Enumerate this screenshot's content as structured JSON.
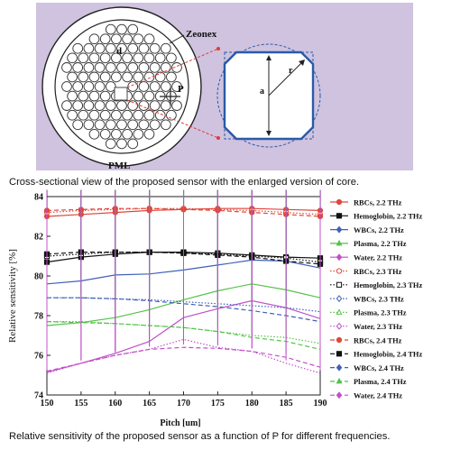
{
  "figure_top": {
    "labels": {
      "zeonex": "Zeonex",
      "d": "d",
      "p": "P",
      "pml": "PML",
      "a": "a",
      "r": "r"
    },
    "caption": "Cross-sectional view of the proposed sensor with the enlarged version of core."
  },
  "figure_bottom_caption": "Relative sensitivity of the proposed sensor as a function of P for different frequencies.",
  "chart_data": {
    "type": "line",
    "xlabel": "Pitch [um]",
    "ylabel": "Relative sensitivity [%]",
    "x": [
      150,
      155,
      160,
      165,
      170,
      175,
      180,
      185,
      190
    ],
    "x_ticks": [
      "150",
      "155",
      "160",
      "165",
      "170",
      "175",
      "180",
      "185",
      "190"
    ],
    "y_ticks": [
      "74",
      "76",
      "78",
      "80",
      "82",
      "84"
    ],
    "xlim": [
      150,
      190
    ],
    "ylim": [
      74,
      84
    ],
    "grid": false,
    "legend_position": "right",
    "series": [
      {
        "name": "RBCs, 2.2 THz",
        "color": "#e0463a",
        "dash": "solid",
        "marker": "circle",
        "values": [
          83.0,
          83.1,
          83.2,
          83.3,
          83.35,
          83.4,
          83.4,
          83.35,
          83.3
        ]
      },
      {
        "name": "Hemoglobin, 2.2 THz",
        "color": "#111111",
        "dash": "solid",
        "marker": "square",
        "values": [
          80.7,
          80.95,
          81.1,
          81.2,
          81.2,
          81.15,
          81.05,
          80.95,
          80.9
        ]
      },
      {
        "name": "WBCs, 2.2 THz",
        "color": "#4060b8",
        "dash": "solid",
        "marker": "diamond",
        "values": [
          79.6,
          79.75,
          80.05,
          80.1,
          80.3,
          80.55,
          80.8,
          80.75,
          80.4
        ]
      },
      {
        "name": "Plasma, 2.2 THz",
        "color": "#55c24a",
        "dash": "solid",
        "marker": "triangle",
        "values": [
          77.5,
          77.65,
          77.9,
          78.3,
          78.8,
          79.25,
          79.6,
          79.3,
          78.9
        ]
      },
      {
        "name": "Water, 2.2 THz",
        "color": "#c050c8",
        "dash": "solid",
        "marker": "diamond",
        "values": [
          75.15,
          75.6,
          76.1,
          76.7,
          77.9,
          78.35,
          78.75,
          78.4,
          77.85
        ]
      },
      {
        "name": "RBCs, 2.3 THz",
        "color": "#e0463a",
        "dash": "dotted",
        "marker": "circle-open",
        "values": [
          83.2,
          83.3,
          83.35,
          83.4,
          83.4,
          83.35,
          83.3,
          83.2,
          83.1
        ]
      },
      {
        "name": "Hemoglobin, 2.3 THz",
        "color": "#111111",
        "dash": "dotted",
        "marker": "square-open",
        "values": [
          81.0,
          81.1,
          81.2,
          81.2,
          81.15,
          81.1,
          81.0,
          80.9,
          80.7
        ]
      },
      {
        "name": "WBCs, 2.3 THz",
        "color": "#4060b8",
        "dash": "dotted",
        "marker": "diamond-open",
        "values": [
          78.9,
          78.9,
          78.85,
          78.8,
          78.7,
          78.6,
          78.5,
          78.4,
          78.2
        ]
      },
      {
        "name": "Plasma, 2.3 THz",
        "color": "#55c24a",
        "dash": "dotted",
        "marker": "triangle-open",
        "values": [
          77.7,
          77.7,
          77.6,
          77.5,
          77.4,
          77.2,
          77.0,
          76.9,
          76.6
        ]
      },
      {
        "name": "Water, 2.3 THz",
        "color": "#c050c8",
        "dash": "dotted",
        "marker": "diamond-open",
        "values": [
          75.1,
          75.6,
          76.0,
          76.3,
          76.8,
          76.4,
          76.2,
          75.6,
          75.1
        ]
      },
      {
        "name": "RBCs, 2.4 THz",
        "color": "#e0463a",
        "dash": "dashed",
        "marker": "circle",
        "values": [
          83.3,
          83.35,
          83.4,
          83.4,
          83.35,
          83.3,
          83.2,
          83.1,
          83.0
        ]
      },
      {
        "name": "Hemoglobin, 2.4 THz",
        "color": "#111111",
        "dash": "dashed",
        "marker": "square",
        "values": [
          81.1,
          81.2,
          81.2,
          81.2,
          81.15,
          81.05,
          80.95,
          80.75,
          80.6
        ]
      },
      {
        "name": "WBCs, 2.4 THz",
        "color": "#4060b8",
        "dash": "dashed",
        "marker": "diamond",
        "values": [
          78.9,
          78.9,
          78.85,
          78.75,
          78.6,
          78.45,
          78.25,
          78.0,
          77.7
        ]
      },
      {
        "name": "Plasma, 2.4 THz",
        "color": "#55c24a",
        "dash": "dashed",
        "marker": "triangle",
        "values": [
          77.7,
          77.65,
          77.6,
          77.5,
          77.4,
          77.2,
          76.9,
          76.7,
          76.3
        ]
      },
      {
        "name": "Water, 2.4 THz",
        "color": "#c050c8",
        "dash": "dashed",
        "marker": "diamond",
        "values": [
          75.2,
          75.6,
          76.0,
          76.3,
          76.4,
          76.35,
          76.2,
          75.9,
          75.4
        ]
      }
    ]
  }
}
